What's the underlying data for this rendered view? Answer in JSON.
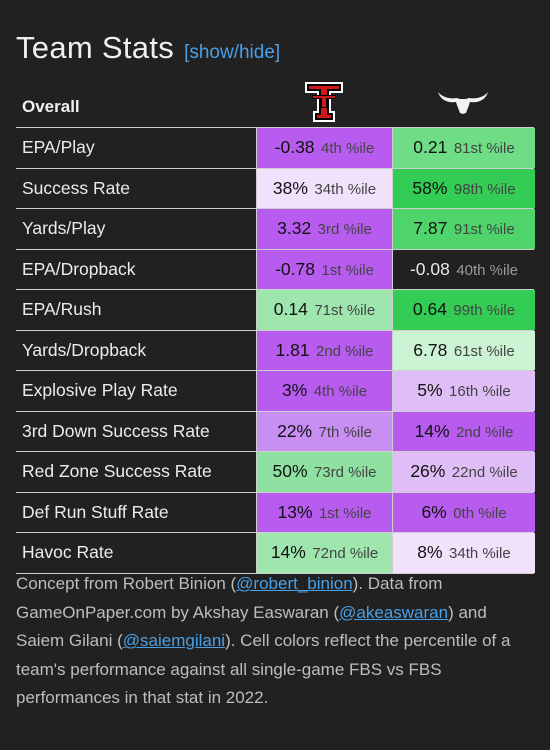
{
  "header": {
    "title": "Team Stats",
    "toggle_label": "[show/hide]",
    "section_label": "Overall"
  },
  "teams": [
    {
      "name": "Texas Tech",
      "logo_icon": "texas-tech-double-t-logo",
      "colors": [
        "#cc0000",
        "#000000"
      ]
    },
    {
      "name": "Texas",
      "logo_icon": "longhorn-logo",
      "colors": [
        "#ffffff"
      ]
    }
  ],
  "colors": {
    "purple_strong": "#b85cf0",
    "purple_mid": "#c88ef2",
    "purple_light": "#dfbdf6",
    "purple_pale": "#f1e1fb",
    "green_strong": "#33cc55",
    "green_mid": "#6fdc86",
    "green_light": "#9fe6ae",
    "green_pale": "#ccf3d4",
    "neutral": "#212121"
  },
  "rows": [
    {
      "label": "EPA/Play",
      "c1": {
        "value": "-0.38",
        "pct": "4th %ile",
        "fill": "#b85cf0"
      },
      "c2": {
        "value": "0.21",
        "pct": "81st %ile",
        "fill": "#6fdc86"
      }
    },
    {
      "label": "Success Rate",
      "c1": {
        "value": "38%",
        "pct": "34th %ile",
        "fill": "#f1e1fb"
      },
      "c2": {
        "value": "58%",
        "pct": "98th %ile",
        "fill": "#33cc55"
      }
    },
    {
      "label": "Yards/Play",
      "c1": {
        "value": "3.32",
        "pct": "3rd %ile",
        "fill": "#b85cf0"
      },
      "c2": {
        "value": "7.87",
        "pct": "91st %ile",
        "fill": "#4fd46c"
      }
    },
    {
      "label": "EPA/Dropback",
      "c1": {
        "value": "-0.78",
        "pct": "1st %ile",
        "fill": "#b85cf0"
      },
      "c2": {
        "value": "-0.08",
        "pct": "40th %ile",
        "fill": "#212121"
      }
    },
    {
      "label": "EPA/Rush",
      "c1": {
        "value": "0.14",
        "pct": "71st %ile",
        "fill": "#9fe6ae"
      },
      "c2": {
        "value": "0.64",
        "pct": "99th %ile",
        "fill": "#33cc55"
      }
    },
    {
      "label": "Yards/Dropback",
      "c1": {
        "value": "1.81",
        "pct": "2nd %ile",
        "fill": "#b85cf0"
      },
      "c2": {
        "value": "6.78",
        "pct": "61st %ile",
        "fill": "#ccf3d4"
      }
    },
    {
      "label": "Explosive Play Rate",
      "c1": {
        "value": "3%",
        "pct": "4th %ile",
        "fill": "#b85cf0"
      },
      "c2": {
        "value": "5%",
        "pct": "16th %ile",
        "fill": "#dfbdf6"
      }
    },
    {
      "label": "3rd Down Success Rate",
      "c1": {
        "value": "22%",
        "pct": "7th %ile",
        "fill": "#c88ef2"
      },
      "c2": {
        "value": "14%",
        "pct": "2nd %ile",
        "fill": "#b85cf0"
      }
    },
    {
      "label": "Red Zone Success Rate",
      "c1": {
        "value": "50%",
        "pct": "73rd %ile",
        "fill": "#8fe1a1"
      },
      "c2": {
        "value": "26%",
        "pct": "22nd %ile",
        "fill": "#dfbdf6"
      }
    },
    {
      "label": "Def Run Stuff Rate",
      "c1": {
        "value": "13%",
        "pct": "1st %ile",
        "fill": "#b85cf0"
      },
      "c2": {
        "value": "6%",
        "pct": "0th %ile",
        "fill": "#b85cf0"
      }
    },
    {
      "label": "Havoc Rate",
      "c1": {
        "value": "14%",
        "pct": "72nd %ile",
        "fill": "#9fe6ae"
      },
      "c2": {
        "value": "8%",
        "pct": "34th %ile",
        "fill": "#f1e1fb"
      }
    }
  ],
  "footnote": {
    "t1": "Concept from Robert Binion (",
    "link1": "@robert_binion",
    "t2": "). Data from GameOnPaper.com by Akshay Easwaran (",
    "link2": "@akeaswaran",
    "t3": ") and Saiem Gilani (",
    "link3": "@saiemgilani",
    "t4": "). Cell colors reflect the percentile of a team's performance against all single-game FBS vs FBS performances in that stat in 2022."
  }
}
